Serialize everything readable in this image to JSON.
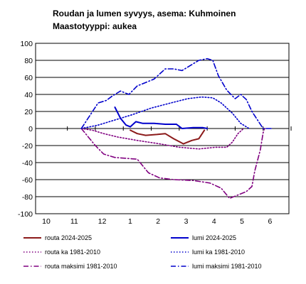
{
  "title_line1": "Roudan ja lumen syvyys, asema: Kuhmoinen",
  "title_line2": "Maastotyyppi: aukea",
  "chart_data": {
    "type": "line",
    "ylim": [
      -100,
      100
    ],
    "ytick_step": 20,
    "xlim": [
      0,
      8.6
    ],
    "xtick_labels": [
      "10",
      "11",
      "12",
      "1",
      "2",
      "3",
      "4",
      "5",
      "6"
    ],
    "grid": "horizontal",
    "legend_position": "bottom",
    "series": [
      {
        "name": "routa 2024-2025",
        "color": "#8b1a1a",
        "style": "solid",
        "points": [
          [
            2.75,
            -2
          ],
          [
            3.0,
            -6
          ],
          [
            3.3,
            -8
          ],
          [
            3.7,
            -7
          ],
          [
            4.0,
            -6
          ],
          [
            4.3,
            -12
          ],
          [
            4.65,
            -18
          ],
          [
            4.95,
            -14
          ],
          [
            5.2,
            -12
          ],
          [
            5.4,
            -2
          ]
        ]
      },
      {
        "name": "lumi 2024-2025",
        "color": "#0000cc",
        "style": "solid",
        "points": [
          [
            2.2,
            25
          ],
          [
            2.4,
            12
          ],
          [
            2.6,
            4
          ],
          [
            2.75,
            2
          ],
          [
            2.95,
            8
          ],
          [
            3.2,
            6
          ],
          [
            3.6,
            6
          ],
          [
            4.0,
            5
          ],
          [
            4.4,
            5
          ],
          [
            4.6,
            0
          ],
          [
            5.0,
            1
          ],
          [
            5.35,
            1
          ],
          [
            5.5,
            0
          ]
        ]
      },
      {
        "name": "routa ka 1981-2010",
        "color": "#800080",
        "style": "dotted",
        "points": [
          [
            1.0,
            0
          ],
          [
            1.4,
            -2
          ],
          [
            1.8,
            -6
          ],
          [
            2.3,
            -10
          ],
          [
            3.0,
            -14
          ],
          [
            3.8,
            -18
          ],
          [
            4.5,
            -22
          ],
          [
            5.2,
            -24
          ],
          [
            5.8,
            -22
          ],
          [
            6.2,
            -22
          ],
          [
            6.4,
            -16
          ],
          [
            6.6,
            -6
          ],
          [
            6.8,
            0
          ]
        ]
      },
      {
        "name": "lumi ka 1981-2010",
        "color": "#0000cc",
        "style": "dotted",
        "points": [
          [
            1.0,
            0
          ],
          [
            1.6,
            4
          ],
          [
            2.2,
            10
          ],
          [
            2.8,
            16
          ],
          [
            3.5,
            24
          ],
          [
            4.2,
            30
          ],
          [
            4.8,
            35
          ],
          [
            5.3,
            37
          ],
          [
            5.7,
            36
          ],
          [
            6.0,
            30
          ],
          [
            6.4,
            18
          ],
          [
            6.7,
            6
          ],
          [
            7.0,
            0
          ]
        ]
      },
      {
        "name": "routa maksimi 1981-2010",
        "color": "#800080",
        "style": "dashdot",
        "points": [
          [
            1.0,
            0
          ],
          [
            1.2,
            -8
          ],
          [
            1.5,
            -20
          ],
          [
            1.8,
            -30
          ],
          [
            2.2,
            -34
          ],
          [
            2.6,
            -35
          ],
          [
            3.0,
            -36
          ],
          [
            3.2,
            -44
          ],
          [
            3.4,
            -52
          ],
          [
            3.8,
            -58
          ],
          [
            4.3,
            -60
          ],
          [
            5.0,
            -61
          ],
          [
            5.6,
            -64
          ],
          [
            6.0,
            -70
          ],
          [
            6.3,
            -82
          ],
          [
            6.6,
            -78
          ],
          [
            6.9,
            -74
          ],
          [
            7.1,
            -68
          ],
          [
            7.2,
            -50
          ],
          [
            7.4,
            -25
          ],
          [
            7.5,
            -5
          ],
          [
            7.55,
            0
          ]
        ]
      },
      {
        "name": "lumi maksimi 1981-2010",
        "color": "#0000cc",
        "style": "dashdot",
        "points": [
          [
            1.0,
            0
          ],
          [
            1.3,
            15
          ],
          [
            1.6,
            30
          ],
          [
            1.9,
            33
          ],
          [
            2.1,
            38
          ],
          [
            2.4,
            44
          ],
          [
            2.7,
            40
          ],
          [
            3.0,
            50
          ],
          [
            3.3,
            54
          ],
          [
            3.6,
            58
          ],
          [
            4.0,
            70
          ],
          [
            4.3,
            70
          ],
          [
            4.6,
            68
          ],
          [
            4.9,
            74
          ],
          [
            5.2,
            80
          ],
          [
            5.5,
            82
          ],
          [
            5.7,
            80
          ],
          [
            5.9,
            62
          ],
          [
            6.2,
            45
          ],
          [
            6.5,
            35
          ],
          [
            6.7,
            40
          ],
          [
            6.9,
            34
          ],
          [
            7.1,
            20
          ],
          [
            7.3,
            10
          ],
          [
            7.5,
            0
          ],
          [
            7.8,
            0
          ]
        ]
      }
    ]
  }
}
